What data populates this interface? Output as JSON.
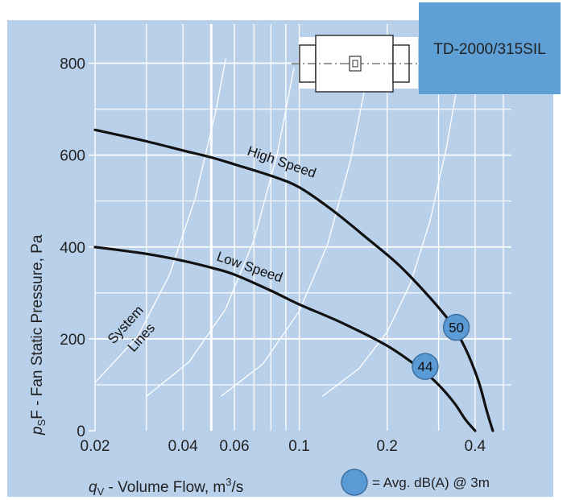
{
  "chart_data": {
    "type": "line",
    "model": "TD-2000/315SIL",
    "xlabel_symbol": "q",
    "xlabel_sub": "V",
    "xlabel_text": " - Volume Flow, m",
    "xlabel_sup": "3",
    "xlabel_tail": "/s",
    "ylabel_symbol": "p",
    "ylabel_sub": "S",
    "ylabel_text": "F - Fan Static Pressure, Pa",
    "x_scale": "log",
    "xlim": [
      0.02,
      0.5
    ],
    "ylim": [
      0,
      850
    ],
    "x_ticks": [
      {
        "value": 0.02,
        "label": "0.02"
      },
      {
        "value": 0.04,
        "label": "0.04"
      },
      {
        "value": 0.06,
        "label": "0.06"
      },
      {
        "value": 0.1,
        "label": "0.1"
      },
      {
        "value": 0.2,
        "label": "0.2"
      },
      {
        "value": 0.4,
        "label": "0.4"
      }
    ],
    "y_ticks": [
      {
        "value": 0,
        "label": "0"
      },
      {
        "value": 200,
        "label": "200"
      },
      {
        "value": 400,
        "label": "400"
      },
      {
        "value": 600,
        "label": "600"
      },
      {
        "value": 800,
        "label": "800"
      }
    ],
    "grid": true,
    "series": [
      {
        "name": "High Speed",
        "points": [
          [
            0.02,
            655
          ],
          [
            0.03,
            630
          ],
          [
            0.04,
            610
          ],
          [
            0.05,
            595
          ],
          [
            0.06,
            580
          ],
          [
            0.08,
            555
          ],
          [
            0.1,
            530
          ],
          [
            0.13,
            480
          ],
          [
            0.17,
            420
          ],
          [
            0.22,
            360
          ],
          [
            0.28,
            290
          ],
          [
            0.33,
            235
          ],
          [
            0.37,
            180
          ],
          [
            0.41,
            110
          ],
          [
            0.44,
            40
          ],
          [
            0.46,
            0
          ]
        ]
      },
      {
        "name": "Low Speed",
        "points": [
          [
            0.02,
            400
          ],
          [
            0.03,
            385
          ],
          [
            0.04,
            370
          ],
          [
            0.05,
            355
          ],
          [
            0.06,
            340
          ],
          [
            0.08,
            305
          ],
          [
            0.1,
            275
          ],
          [
            0.14,
            235
          ],
          [
            0.2,
            185
          ],
          [
            0.26,
            135
          ],
          [
            0.3,
            100
          ],
          [
            0.34,
            60
          ],
          [
            0.37,
            25
          ],
          [
            0.4,
            0
          ]
        ]
      }
    ],
    "system_lines_label": [
      "System",
      "Lines"
    ],
    "system_lines": [
      [
        [
          0.02,
          105
        ],
        [
          0.028,
          205
        ],
        [
          0.036,
          340
        ],
        [
          0.044,
          505
        ],
        [
          0.052,
          700
        ],
        [
          0.056,
          810
        ]
      ],
      [
        [
          0.03,
          75
        ],
        [
          0.042,
          150
        ],
        [
          0.056,
          265
        ],
        [
          0.07,
          415
        ],
        [
          0.084,
          600
        ],
        [
          0.096,
          790
        ]
      ],
      [
        [
          0.054,
          75
        ],
        [
          0.075,
          145
        ],
        [
          0.1,
          260
        ],
        [
          0.125,
          405
        ],
        [
          0.15,
          590
        ],
        [
          0.172,
          780
        ]
      ],
      [
        [
          0.12,
          75
        ],
        [
          0.16,
          135
        ],
        [
          0.2,
          215
        ],
        [
          0.24,
          320
        ],
        [
          0.28,
          455
        ],
        [
          0.32,
          620
        ],
        [
          0.345,
          740
        ]
      ]
    ],
    "markers": [
      {
        "label": "50",
        "x": 0.345,
        "y": 225
      },
      {
        "label": "44",
        "x": 0.27,
        "y": 140
      }
    ],
    "legend": "= Avg. dB(A) @ 3m",
    "colors": {
      "background": "#b9d0ea",
      "grid": "#ffffff",
      "curve": "#111111",
      "system_line": "#ffffff",
      "marker_fill": "#5b9bd5",
      "model_box": "#5e9fd6"
    }
  }
}
